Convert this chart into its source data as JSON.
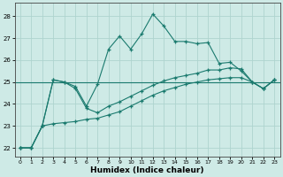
{
  "xlabel": "Humidex (Indice chaleur)",
  "background_color": "#ceeae6",
  "grid_color": "#aed4cf",
  "line_color": "#1a7a6e",
  "xlim": [
    -0.5,
    23.5
  ],
  "ylim": [
    21.6,
    28.6
  ],
  "yticks": [
    22,
    23,
    24,
    25,
    26,
    27,
    28
  ],
  "xticks": [
    0,
    1,
    2,
    3,
    4,
    5,
    6,
    7,
    8,
    9,
    10,
    11,
    12,
    13,
    14,
    15,
    16,
    17,
    18,
    19,
    20,
    21,
    22,
    23
  ],
  "series1_x": [
    0,
    1,
    2,
    3,
    4,
    5,
    6,
    7,
    8,
    9,
    10,
    11,
    12,
    13,
    14,
    15,
    16,
    17,
    18,
    19,
    20,
    21,
    22,
    23
  ],
  "series1_y": [
    22.0,
    22.0,
    23.0,
    25.1,
    25.0,
    24.8,
    23.9,
    24.9,
    26.5,
    27.1,
    26.5,
    27.2,
    28.1,
    27.55,
    26.85,
    26.85,
    26.75,
    26.8,
    25.85,
    25.9,
    25.5,
    25.0,
    24.7,
    25.1
  ],
  "series2_x": [
    0,
    1,
    2,
    3,
    4,
    5,
    6,
    7,
    8,
    9,
    10,
    11,
    12,
    13,
    14,
    15,
    16,
    17,
    18,
    19,
    20,
    21,
    22,
    23
  ],
  "series2_y": [
    22.0,
    22.0,
    23.0,
    23.1,
    23.15,
    23.2,
    23.3,
    23.35,
    23.5,
    23.65,
    23.9,
    24.15,
    24.4,
    24.6,
    24.75,
    24.9,
    25.0,
    25.1,
    25.15,
    25.2,
    25.2,
    25.0,
    24.7,
    25.1
  ],
  "series3_x": [
    0,
    1,
    2,
    3,
    4,
    5,
    6,
    7,
    8,
    9,
    10,
    11,
    12,
    13,
    14,
    15,
    16,
    17,
    18,
    19,
    20,
    21,
    22,
    23
  ],
  "series3_y": [
    22.0,
    22.0,
    23.0,
    25.1,
    25.0,
    24.7,
    23.8,
    23.6,
    23.9,
    24.1,
    24.35,
    24.6,
    24.85,
    25.05,
    25.2,
    25.3,
    25.4,
    25.55,
    25.55,
    25.65,
    25.6,
    25.0,
    24.7,
    25.1
  ]
}
